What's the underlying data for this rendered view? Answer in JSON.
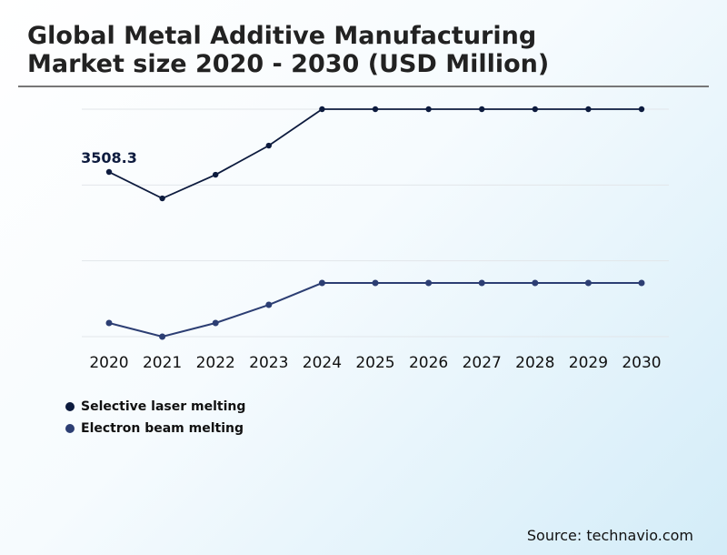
{
  "title_line1": "Global Metal Additive Manufacturing",
  "title_line2": "Market size 2020 - 2030 (USD Million)",
  "source": "Source: technavio.com",
  "chart_data": {
    "type": "line",
    "title": "Global Metal Additive Manufacturing Market size 2020 - 2030 (USD Million)",
    "categories": [
      "2020",
      "2021",
      "2022",
      "2023",
      "2024",
      "2025",
      "2026",
      "2027",
      "2028",
      "2029",
      "2030"
    ],
    "series": [
      {
        "name": "Selective laser melting",
        "color": "#0d1b3e",
        "values": [
          3508.3,
          2946,
          3450,
          4070,
          4846,
          4846,
          4846,
          4846,
          4846,
          4846,
          4846
        ]
      },
      {
        "name": "Electron beam melting",
        "color": "#2c3e73",
        "values": [
          291,
          0,
          291,
          678,
          1143,
          1143,
          1143,
          1143,
          1143,
          1143,
          1143
        ]
      }
    ],
    "data_labels": [
      {
        "series": 0,
        "index": 0,
        "text": "3508.3"
      }
    ],
    "ylim": [
      0,
      4846
    ],
    "y_axis_visible": false,
    "grid": true,
    "legend": "bottom-left"
  }
}
